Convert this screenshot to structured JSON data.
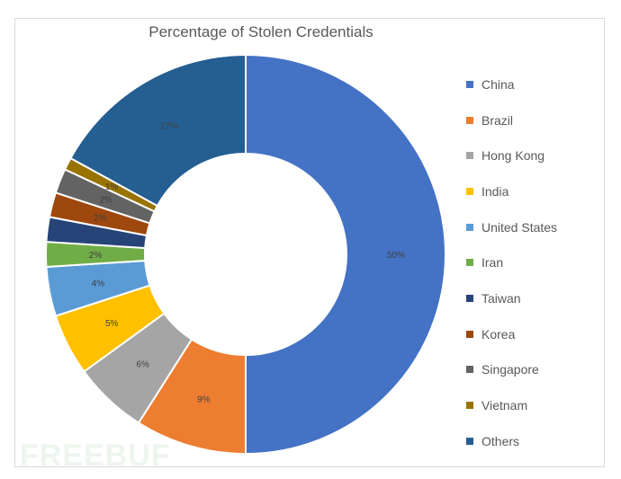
{
  "chart_data": {
    "type": "pie",
    "title": "Percentage of Stolen Credentials",
    "categories": [
      "China",
      "Brazil",
      "Hong Kong",
      "India",
      "United States",
      "Iran",
      "Taiwan",
      "Korea",
      "Singapore",
      "Vietnam",
      "Others"
    ],
    "values": [
      50,
      9,
      6,
      5,
      4,
      2,
      2,
      2,
      2,
      1,
      17
    ],
    "labels": [
      "50%",
      "9%",
      "6%",
      "5%",
      "4%",
      "2%",
      "",
      "2%",
      "2%",
      "1%",
      "17%"
    ],
    "colors": [
      "#4472C4",
      "#ED7D31",
      "#A5A5A5",
      "#FFC000",
      "#5B9BD5",
      "#70AD47",
      "#264478",
      "#9E480E",
      "#636363",
      "#997300",
      "#255E91"
    ],
    "legend_position": "right"
  },
  "watermark": "FREEBUF"
}
